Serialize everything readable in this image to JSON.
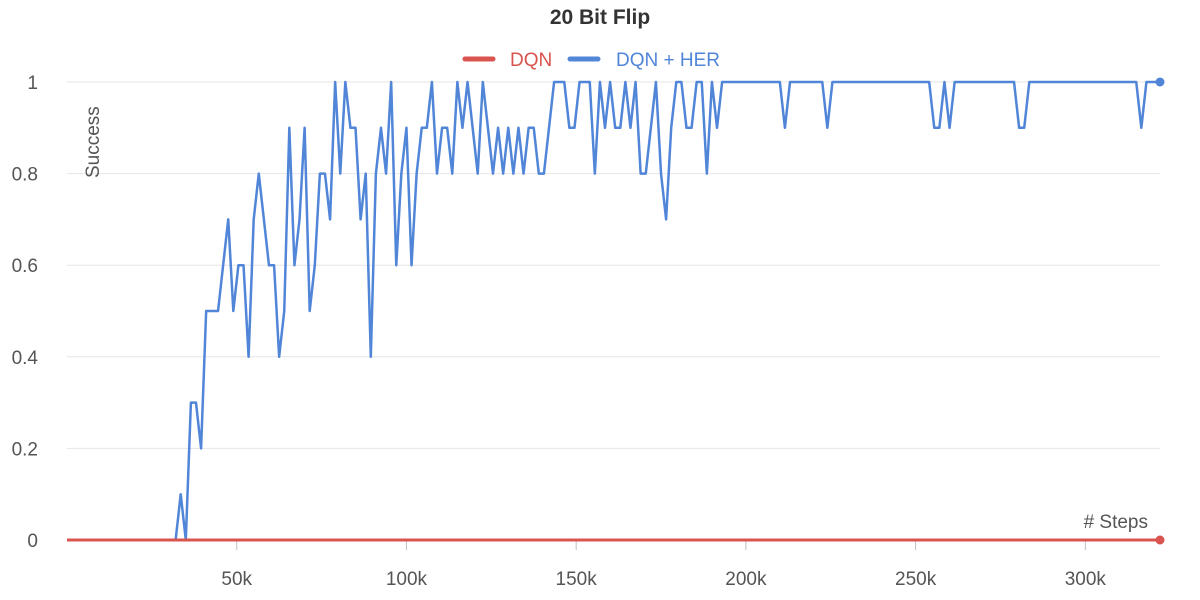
{
  "chart_data": {
    "type": "line",
    "title": "20 Bit Flip",
    "xlabel": "# Steps",
    "ylabel": "Success",
    "xlim": [
      0,
      322000
    ],
    "ylim": [
      0,
      1
    ],
    "x_ticks": [
      50000,
      100000,
      150000,
      200000,
      250000,
      300000
    ],
    "x_tick_labels": [
      "50k",
      "100k",
      "150k",
      "200k",
      "250k",
      "300k"
    ],
    "y_ticks": [
      0,
      0.2,
      0.4,
      0.6,
      0.8,
      1
    ],
    "y_tick_labels": [
      "0",
      "0.2",
      "0.4",
      "0.6",
      "0.8",
      "1"
    ],
    "grid": "horizontal",
    "legend": "top-center",
    "series": [
      {
        "name": "DQN",
        "color": "#d9534f",
        "points": [
          [
            0,
            0
          ],
          [
            322000,
            0
          ]
        ]
      },
      {
        "name": "DQN + HER",
        "color": "#5085d8",
        "points": [
          [
            0,
            0
          ],
          [
            32000,
            0
          ],
          [
            33500,
            0.1
          ],
          [
            35000,
            0
          ],
          [
            36500,
            0.3
          ],
          [
            38000,
            0.3
          ],
          [
            39500,
            0.2
          ],
          [
            41000,
            0.5
          ],
          [
            44500,
            0.5
          ],
          [
            46000,
            0.6
          ],
          [
            47500,
            0.7
          ],
          [
            49000,
            0.5
          ],
          [
            50500,
            0.6
          ],
          [
            52000,
            0.6
          ],
          [
            53500,
            0.4
          ],
          [
            55000,
            0.7
          ],
          [
            56500,
            0.8
          ],
          [
            59500,
            0.6
          ],
          [
            61000,
            0.6
          ],
          [
            62500,
            0.4
          ],
          [
            64000,
            0.5
          ],
          [
            65500,
            0.9
          ],
          [
            67000,
            0.6
          ],
          [
            68500,
            0.7
          ],
          [
            70000,
            0.9
          ],
          [
            71500,
            0.5
          ],
          [
            73000,
            0.6
          ],
          [
            74500,
            0.8
          ],
          [
            76000,
            0.8
          ],
          [
            77500,
            0.7
          ],
          [
            79000,
            1
          ],
          [
            80500,
            0.8
          ],
          [
            82000,
            1
          ],
          [
            83500,
            0.9
          ],
          [
            85000,
            0.9
          ],
          [
            86500,
            0.7
          ],
          [
            88000,
            0.8
          ],
          [
            89500,
            0.4
          ],
          [
            91000,
            0.8
          ],
          [
            92500,
            0.9
          ],
          [
            94000,
            0.8
          ],
          [
            95500,
            1
          ],
          [
            97000,
            0.6
          ],
          [
            98500,
            0.8
          ],
          [
            100000,
            0.9
          ],
          [
            101500,
            0.6
          ],
          [
            103000,
            0.8
          ],
          [
            104500,
            0.9
          ],
          [
            106000,
            0.9
          ],
          [
            107500,
            1
          ],
          [
            109000,
            0.8
          ],
          [
            110500,
            0.9
          ],
          [
            112000,
            0.9
          ],
          [
            113500,
            0.8
          ],
          [
            115000,
            1
          ],
          [
            116500,
            0.9
          ],
          [
            118000,
            1
          ],
          [
            119500,
            0.9
          ],
          [
            121000,
            0.8
          ],
          [
            122500,
            1
          ],
          [
            124000,
            0.9
          ],
          [
            125500,
            0.8
          ],
          [
            127000,
            0.9
          ],
          [
            128500,
            0.8
          ],
          [
            130000,
            0.9
          ],
          [
            131500,
            0.8
          ],
          [
            133000,
            0.9
          ],
          [
            134500,
            0.8
          ],
          [
            136000,
            0.9
          ],
          [
            137500,
            0.9
          ],
          [
            139000,
            0.8
          ],
          [
            140500,
            0.8
          ],
          [
            142000,
            0.9
          ],
          [
            143500,
            1
          ],
          [
            146500,
            1
          ],
          [
            148000,
            0.9
          ],
          [
            149500,
            0.9
          ],
          [
            151000,
            1
          ],
          [
            154000,
            1
          ],
          [
            155500,
            0.8
          ],
          [
            157000,
            1
          ],
          [
            158500,
            0.9
          ],
          [
            160000,
            1
          ],
          [
            161500,
            0.9
          ],
          [
            163000,
            0.9
          ],
          [
            164500,
            1
          ],
          [
            166000,
            0.9
          ],
          [
            167500,
            1
          ],
          [
            169000,
            0.8
          ],
          [
            170500,
            0.8
          ],
          [
            172000,
            0.9
          ],
          [
            173500,
            1
          ],
          [
            175000,
            0.8
          ],
          [
            176500,
            0.7
          ],
          [
            178000,
            0.9
          ],
          [
            179500,
            1
          ],
          [
            181000,
            1
          ],
          [
            182500,
            0.9
          ],
          [
            184000,
            0.9
          ],
          [
            185500,
            1
          ],
          [
            187000,
            1
          ],
          [
            188500,
            0.8
          ],
          [
            190000,
            1
          ],
          [
            191500,
            0.9
          ],
          [
            193000,
            1
          ],
          [
            210000,
            1
          ],
          [
            211500,
            0.9
          ],
          [
            213000,
            1
          ],
          [
            222500,
            1
          ],
          [
            224000,
            0.9
          ],
          [
            225500,
            1
          ],
          [
            254000,
            1
          ],
          [
            255500,
            0.9
          ],
          [
            257000,
            0.9
          ],
          [
            258500,
            1
          ],
          [
            260000,
            0.9
          ],
          [
            261500,
            1
          ],
          [
            279000,
            1
          ],
          [
            280500,
            0.9
          ],
          [
            282000,
            0.9
          ],
          [
            283500,
            1
          ],
          [
            315000,
            1
          ],
          [
            316500,
            0.9
          ],
          [
            318000,
            1
          ],
          [
            322000,
            1
          ]
        ]
      }
    ]
  }
}
